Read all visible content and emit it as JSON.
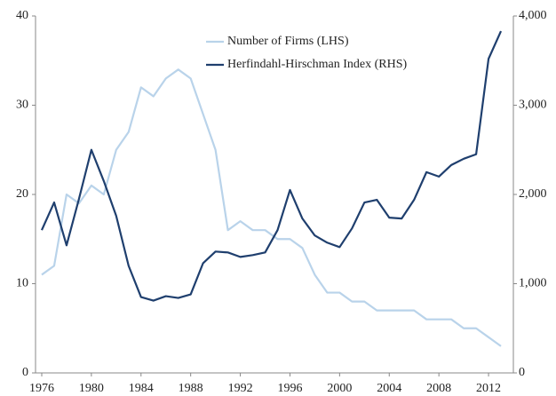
{
  "chart_data": {
    "type": "line",
    "x": [
      1976,
      1977,
      1978,
      1979,
      1980,
      1981,
      1982,
      1983,
      1984,
      1985,
      1986,
      1987,
      1988,
      1989,
      1990,
      1991,
      1992,
      1993,
      1994,
      1995,
      1996,
      1997,
      1998,
      1999,
      2000,
      2001,
      2002,
      2003,
      2004,
      2005,
      2006,
      2007,
      2008,
      2009,
      2010,
      2011,
      2012,
      2013
    ],
    "xlim": [
      1975.5,
      2014
    ],
    "xticks": [
      1976,
      1980,
      1984,
      1988,
      1992,
      1996,
      2000,
      2004,
      2008,
      2012
    ],
    "ylim": [
      0,
      40
    ],
    "yticks": [
      0,
      10,
      20,
      30,
      40
    ],
    "y2lim": [
      0,
      4000
    ],
    "y2ticks": [
      0,
      {
        "value": 1000,
        "label": "1,000"
      },
      {
        "value": 2000,
        "label": "2,000"
      },
      {
        "value": 3000,
        "label": "3,000"
      },
      {
        "value": 4000,
        "label": "4,000"
      }
    ],
    "series": [
      {
        "name": "Number of Firms (LHS)",
        "color": "#b9d3ea",
        "values": [
          11,
          12,
          20,
          19,
          21,
          20,
          25,
          27,
          32,
          31,
          33,
          34,
          33,
          29,
          25,
          16,
          17,
          16,
          16,
          15,
          15,
          14,
          11,
          9,
          9,
          8,
          8,
          7,
          7,
          7,
          7,
          6,
          6,
          6,
          5,
          5,
          4,
          3
        ]
      },
      {
        "name": "Herfindahl-Hirschman Index (RHS)",
        "color": "#1f3f6e",
        "axis": "y2",
        "values": [
          1600,
          1910,
          1430,
          1950,
          2500,
          2150,
          1760,
          1200,
          850,
          810,
          860,
          840,
          880,
          1230,
          1360,
          1350,
          1300,
          1320,
          1350,
          1600,
          2050,
          1730,
          1540,
          1460,
          1410,
          1620,
          1910,
          1940,
          1740,
          1730,
          1940,
          2250,
          2200,
          2330,
          2400,
          2450,
          3520,
          3830
        ]
      }
    ],
    "legend": "top-center"
  }
}
